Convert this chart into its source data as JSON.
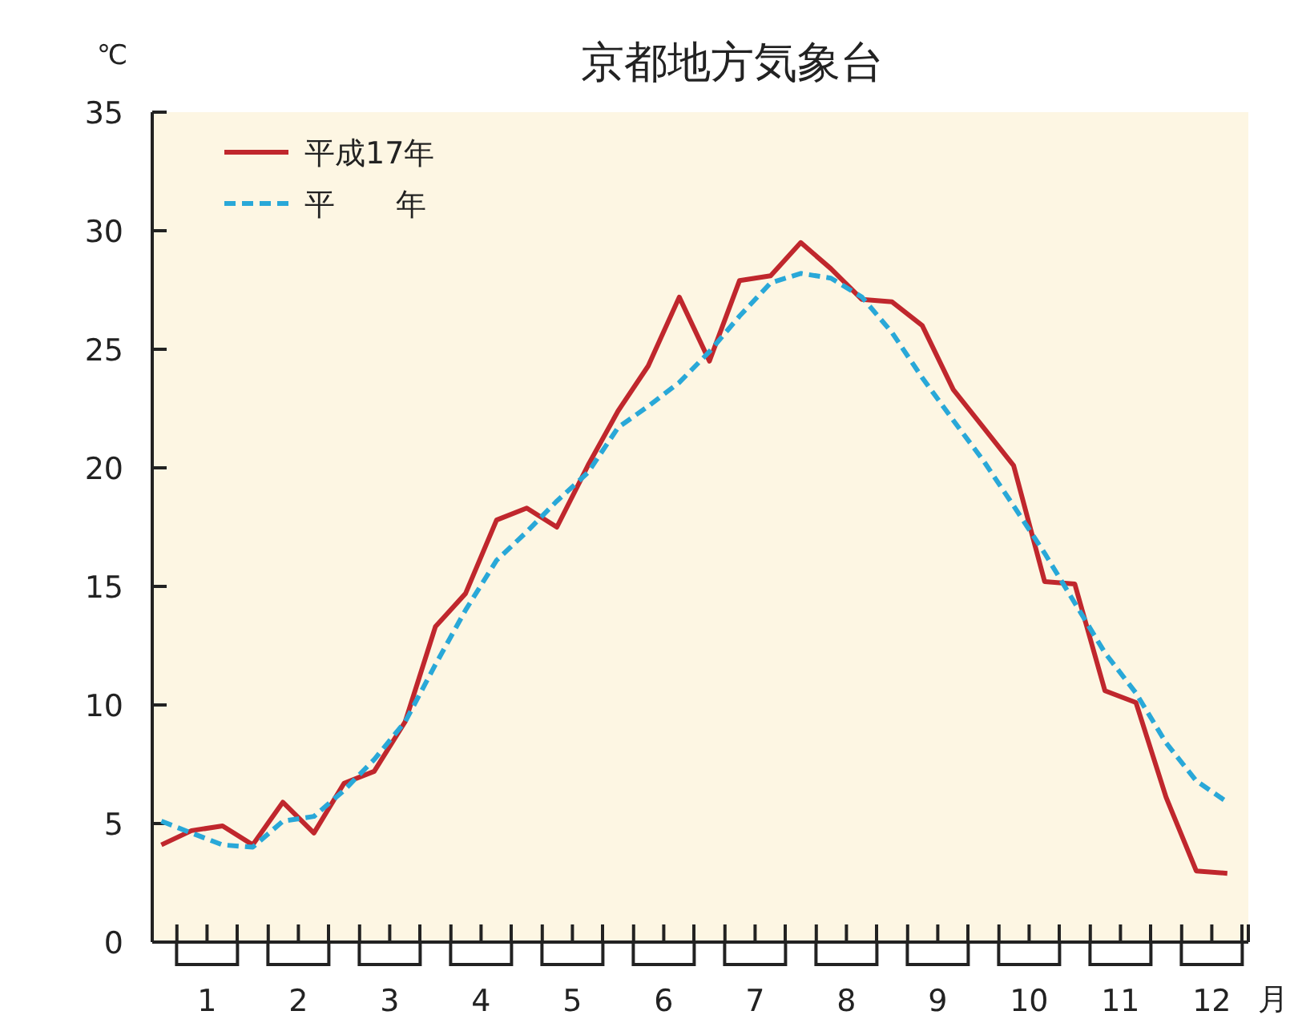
{
  "chart_data": {
    "type": "line",
    "title": "京都地方気象台",
    "ylabel": "℃",
    "xlabel": "月",
    "x": [
      0.5,
      0.83,
      1.17,
      1.5,
      1.83,
      2.17,
      2.5,
      2.83,
      3.17,
      3.5,
      3.83,
      4.17,
      4.5,
      4.83,
      5.17,
      5.5,
      5.83,
      6.17,
      6.5,
      6.83,
      7.17,
      7.5,
      7.83,
      8.17,
      8.5,
      8.83,
      9.17,
      9.5,
      9.83,
      10.17,
      10.5,
      10.83,
      11.17,
      11.5,
      11.83,
      12.17
    ],
    "series": [
      {
        "name": "平成17年",
        "color": "#c0272d",
        "line_style": "solid",
        "values": [
          4.1,
          4.7,
          4.9,
          4.1,
          5.9,
          4.6,
          6.7,
          7.2,
          9.3,
          13.3,
          14.7,
          17.8,
          18.3,
          17.5,
          20.1,
          22.4,
          24.3,
          27.2,
          24.5,
          27.9,
          28.1,
          29.5,
          28.4,
          27.1,
          27.0,
          26.0,
          23.3,
          21.7,
          20.1,
          15.2,
          15.1,
          10.6,
          10.1,
          6.1,
          3.0,
          2.9
        ]
      },
      {
        "name": "平　　年",
        "color": "#29a8d8",
        "line_style": "dashed",
        "values": [
          5.1,
          4.6,
          4.1,
          4.0,
          5.1,
          5.3,
          6.4,
          7.7,
          9.3,
          11.7,
          14.0,
          16.1,
          17.3,
          18.6,
          19.8,
          21.7,
          22.6,
          23.6,
          24.9,
          26.4,
          27.8,
          28.2,
          28.0,
          27.2,
          25.7,
          23.8,
          22.0,
          20.3,
          18.4,
          16.4,
          14.3,
          12.2,
          10.5,
          8.4,
          6.8,
          5.9
        ]
      }
    ],
    "xlim": [
      0.4,
      12.4
    ],
    "xticks": [
      {
        "value": 0.67,
        "label": null
      },
      {
        "value": 1,
        "label": "1"
      },
      {
        "value": 1.33,
        "label": null
      },
      {
        "value": 1.67,
        "label": null
      },
      {
        "value": 2,
        "label": "2"
      },
      {
        "value": 2.33,
        "label": null
      },
      {
        "value": 2.67,
        "label": null
      },
      {
        "value": 3,
        "label": "3"
      },
      {
        "value": 3.33,
        "label": null
      },
      {
        "value": 3.67,
        "label": null
      },
      {
        "value": 4,
        "label": "4"
      },
      {
        "value": 4.33,
        "label": null
      },
      {
        "value": 4.67,
        "label": null
      },
      {
        "value": 5,
        "label": "5"
      },
      {
        "value": 5.33,
        "label": null
      },
      {
        "value": 5.67,
        "label": null
      },
      {
        "value": 6,
        "label": "6"
      },
      {
        "value": 6.33,
        "label": null
      },
      {
        "value": 6.67,
        "label": null
      },
      {
        "value": 7,
        "label": "7"
      },
      {
        "value": 7.33,
        "label": null
      },
      {
        "value": 7.67,
        "label": null
      },
      {
        "value": 8,
        "label": "8"
      },
      {
        "value": 8.33,
        "label": null
      },
      {
        "value": 8.67,
        "label": null
      },
      {
        "value": 9,
        "label": "9"
      },
      {
        "value": 9.33,
        "label": null
      },
      {
        "value": 9.67,
        "label": null
      },
      {
        "value": 10,
        "label": "10"
      },
      {
        "value": 10.33,
        "label": null
      },
      {
        "value": 10.67,
        "label": null
      },
      {
        "value": 11,
        "label": "11"
      },
      {
        "value": 11.33,
        "label": null
      },
      {
        "value": 11.67,
        "label": null
      },
      {
        "value": 12,
        "label": "12"
      },
      {
        "value": 12.33,
        "label": null
      }
    ],
    "ylim": [
      0,
      35
    ],
    "yticks": [
      0,
      5,
      10,
      15,
      20,
      25,
      30,
      35
    ],
    "grid": false,
    "legend": "top left",
    "marker": "none"
  }
}
